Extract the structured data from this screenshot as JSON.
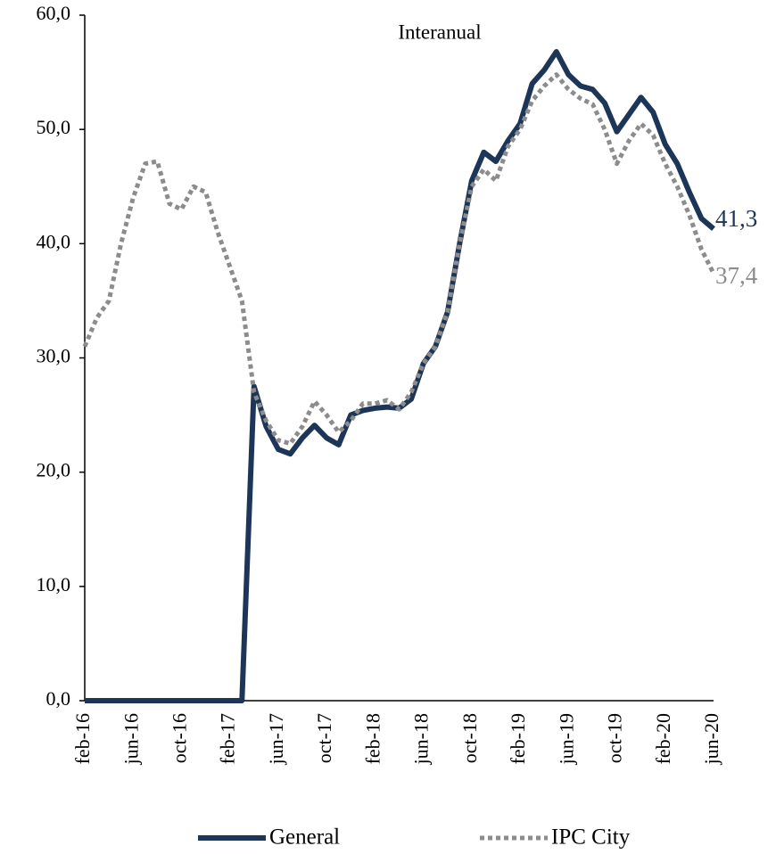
{
  "chart_data": {
    "type": "line",
    "title": "Interanual",
    "categories": [
      "feb-16",
      null,
      null,
      null,
      "jun-16",
      null,
      null,
      null,
      "oct-16",
      null,
      null,
      null,
      "feb-17",
      null,
      null,
      null,
      "jun-17",
      null,
      null,
      null,
      "oct-17",
      null,
      null,
      null,
      "feb-18",
      null,
      null,
      null,
      "jun-18",
      null,
      null,
      null,
      "oct-18",
      null,
      null,
      null,
      "feb-19",
      null,
      null,
      null,
      "jun-19",
      null,
      null,
      null,
      "oct-19",
      null,
      null,
      null,
      "feb-20",
      null,
      null,
      null,
      "jun-20"
    ],
    "series": [
      {
        "name": "General",
        "color": "#1d3557",
        "dash": "solid",
        "values": [
          0,
          0,
          0,
          0,
          0,
          0,
          0,
          0,
          0,
          0,
          0,
          0,
          0,
          0,
          27.5,
          24,
          22,
          21.6,
          23,
          24.1,
          23,
          22.4,
          25,
          25.4,
          25.6,
          25.7,
          25.6,
          26.4,
          29.5,
          31,
          34,
          40,
          45.5,
          48,
          47.2,
          49,
          50.5,
          54,
          55.2,
          56.8,
          54.8,
          53.8,
          53.5,
          52.3,
          49.8,
          51.3,
          52.8,
          51.5,
          48.7,
          47,
          44.5,
          42.2,
          41.3
        ],
        "value_labels": [
          null,
          null,
          null,
          null,
          null,
          null,
          null,
          null,
          null,
          null,
          null,
          null,
          null,
          null,
          null,
          null,
          null,
          null,
          null,
          null,
          null,
          null,
          null,
          null,
          null,
          null,
          null,
          null,
          null,
          null,
          null,
          null,
          null,
          null,
          null,
          null,
          null,
          null,
          null,
          null,
          null,
          null,
          null,
          null,
          null,
          null,
          null,
          null,
          null,
          null,
          null,
          null,
          "41,3"
        ]
      },
      {
        "name": "IPC City",
        "color": "#8c8c8c",
        "dash": "dotted",
        "values": [
          31,
          33.5,
          35,
          40,
          44,
          47,
          47.2,
          43.5,
          43,
          45,
          44.5,
          41,
          38,
          35,
          27,
          24.5,
          22.8,
          22.5,
          24,
          26.2,
          25,
          23.5,
          24.5,
          26,
          26,
          26.3,
          25.5,
          27,
          29.5,
          31,
          34,
          40,
          45,
          46.5,
          45.5,
          48.5,
          50,
          52.5,
          53.8,
          54.8,
          53.5,
          52.7,
          52.2,
          50,
          47,
          49,
          50.5,
          49.5,
          47,
          45,
          42.5,
          39.5,
          37.4
        ],
        "value_labels": [
          null,
          null,
          null,
          null,
          null,
          null,
          null,
          null,
          null,
          null,
          null,
          null,
          null,
          null,
          null,
          null,
          null,
          null,
          null,
          null,
          null,
          null,
          null,
          null,
          null,
          null,
          null,
          null,
          null,
          null,
          null,
          null,
          null,
          null,
          null,
          null,
          null,
          null,
          null,
          null,
          null,
          null,
          null,
          null,
          null,
          null,
          null,
          null,
          null,
          null,
          null,
          null,
          "37,4"
        ]
      }
    ],
    "ylim": [
      0,
      60
    ],
    "yticks": [
      {
        "value": 0,
        "label": "0,0"
      },
      {
        "value": 10,
        "label": "10,0"
      },
      {
        "value": 20,
        "label": "20,0"
      },
      {
        "value": 30,
        "label": "30,0"
      },
      {
        "value": 40,
        "label": "40,0"
      },
      {
        "value": 50,
        "label": "50,0"
      },
      {
        "value": 60,
        "label": "60,0"
      }
    ],
    "grid": false,
    "legend": "bottom"
  }
}
